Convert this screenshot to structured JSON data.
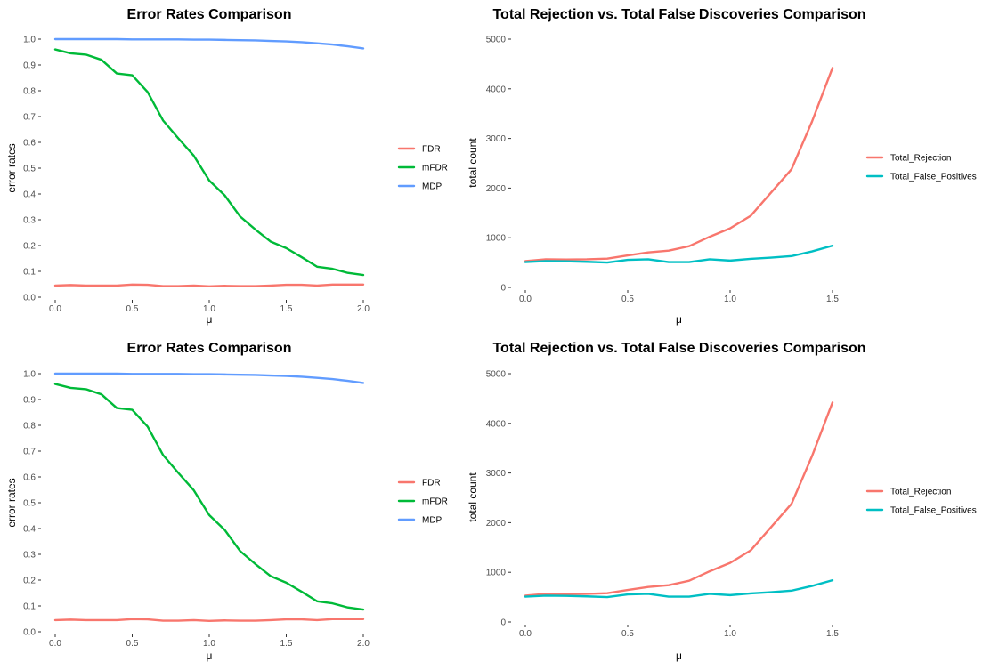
{
  "chart_data": [
    {
      "type": "line",
      "title": "Error Rates Comparison",
      "xlabel": "μ",
      "ylabel": "error rates",
      "xlim": [
        0,
        2.0
      ],
      "ylim": [
        0,
        1.0
      ],
      "x_ticks": [
        "0.0",
        "0.5",
        "1.0",
        "1.5",
        "2.0"
      ],
      "y_ticks": [
        "0.0",
        "0.1",
        "0.2",
        "0.3",
        "0.4",
        "0.5",
        "0.6",
        "0.7",
        "0.8",
        "0.9",
        "1.0"
      ],
      "grid": false,
      "legend_position": "right",
      "x": [
        0.0,
        0.1,
        0.2,
        0.3,
        0.4,
        0.5,
        0.6,
        0.7,
        0.8,
        0.9,
        1.0,
        1.1,
        1.2,
        1.3,
        1.4,
        1.5,
        1.6,
        1.7,
        1.8,
        1.9,
        2.0
      ],
      "series": [
        {
          "name": "FDR",
          "color": "#F8766D",
          "values": [
            0.045,
            0.047,
            0.045,
            0.045,
            0.045,
            0.049,
            0.048,
            0.043,
            0.043,
            0.045,
            0.042,
            0.044,
            0.043,
            0.043,
            0.045,
            0.048,
            0.048,
            0.045,
            0.049,
            0.049,
            0.049
          ]
        },
        {
          "name": "mFDR",
          "color": "#00BA38",
          "values": [
            0.96,
            0.945,
            0.94,
            0.92,
            0.867,
            0.86,
            0.795,
            0.685,
            0.615,
            0.548,
            0.452,
            0.395,
            0.313,
            0.262,
            0.215,
            0.19,
            0.155,
            0.118,
            0.11,
            0.094,
            0.086
          ]
        },
        {
          "name": "MDP",
          "color": "#619CFF",
          "values": [
            1.0,
            1.0,
            1.0,
            1.0,
            1.0,
            0.999,
            0.999,
            0.999,
            0.999,
            0.998,
            0.998,
            0.997,
            0.996,
            0.995,
            0.993,
            0.991,
            0.988,
            0.984,
            0.979,
            0.972,
            0.964
          ]
        }
      ]
    },
    {
      "type": "line",
      "title": "Total Rejection vs. Total False Discoveries Comparison",
      "xlabel": "μ",
      "ylabel": "total count",
      "xlim": [
        0,
        1.5
      ],
      "ylim": [
        0,
        5000
      ],
      "x_ticks": [
        "0.0",
        "0.5",
        "1.0",
        "1.5"
      ],
      "y_ticks": [
        "0",
        "1000",
        "2000",
        "3000",
        "4000",
        "5000"
      ],
      "grid": false,
      "legend_position": "right",
      "x": [
        0.0,
        0.1,
        0.2,
        0.3,
        0.4,
        0.5,
        0.6,
        0.7,
        0.8,
        0.9,
        1.0,
        1.1,
        1.2,
        1.3,
        1.4,
        1.5
      ],
      "series": [
        {
          "name": "Total_Rejection",
          "color": "#F8766D",
          "values": [
            530,
            565,
            560,
            565,
            580,
            645,
            705,
            740,
            830,
            1020,
            1190,
            1440,
            1910,
            2380,
            3340,
            4420
          ]
        },
        {
          "name": "Total_False_Positives",
          "color": "#00BFC4",
          "values": [
            510,
            530,
            525,
            515,
            500,
            555,
            565,
            510,
            510,
            565,
            540,
            575,
            600,
            630,
            725,
            840
          ]
        }
      ]
    },
    {
      "type": "line",
      "title": "Error Rates Comparison",
      "xlabel": "μ",
      "ylabel": "error rates",
      "xlim": [
        0,
        2.0
      ],
      "ylim": [
        0,
        1.0
      ],
      "x_ticks": [
        "0.0",
        "0.5",
        "1.0",
        "1.5",
        "2.0"
      ],
      "y_ticks": [
        "0.0",
        "0.1",
        "0.2",
        "0.3",
        "0.4",
        "0.5",
        "0.6",
        "0.7",
        "0.8",
        "0.9",
        "1.0"
      ],
      "grid": false,
      "legend_position": "right",
      "x": [
        0.0,
        0.1,
        0.2,
        0.3,
        0.4,
        0.5,
        0.6,
        0.7,
        0.8,
        0.9,
        1.0,
        1.1,
        1.2,
        1.3,
        1.4,
        1.5,
        1.6,
        1.7,
        1.8,
        1.9,
        2.0
      ],
      "series": [
        {
          "name": "FDR",
          "color": "#F8766D",
          "values": [
            0.045,
            0.047,
            0.045,
            0.045,
            0.045,
            0.049,
            0.048,
            0.043,
            0.043,
            0.045,
            0.042,
            0.044,
            0.043,
            0.043,
            0.045,
            0.048,
            0.048,
            0.045,
            0.049,
            0.049,
            0.049
          ]
        },
        {
          "name": "mFDR",
          "color": "#00BA38",
          "values": [
            0.96,
            0.945,
            0.94,
            0.92,
            0.867,
            0.86,
            0.795,
            0.685,
            0.615,
            0.548,
            0.452,
            0.395,
            0.313,
            0.262,
            0.215,
            0.19,
            0.155,
            0.118,
            0.11,
            0.094,
            0.086
          ]
        },
        {
          "name": "MDP",
          "color": "#619CFF",
          "values": [
            1.0,
            1.0,
            1.0,
            1.0,
            1.0,
            0.999,
            0.999,
            0.999,
            0.999,
            0.998,
            0.998,
            0.997,
            0.996,
            0.995,
            0.993,
            0.991,
            0.988,
            0.984,
            0.979,
            0.972,
            0.964
          ]
        }
      ]
    },
    {
      "type": "line",
      "title": "Total Rejection vs. Total False Discoveries Comparison",
      "xlabel": "μ",
      "ylabel": "total count",
      "xlim": [
        0,
        1.5
      ],
      "ylim": [
        0,
        5000
      ],
      "x_ticks": [
        "0.0",
        "0.5",
        "1.0",
        "1.5"
      ],
      "y_ticks": [
        "0",
        "1000",
        "2000",
        "3000",
        "4000",
        "5000"
      ],
      "grid": false,
      "legend_position": "right",
      "x": [
        0.0,
        0.1,
        0.2,
        0.3,
        0.4,
        0.5,
        0.6,
        0.7,
        0.8,
        0.9,
        1.0,
        1.1,
        1.2,
        1.3,
        1.4,
        1.5
      ],
      "series": [
        {
          "name": "Total_Rejection",
          "color": "#F8766D",
          "values": [
            530,
            565,
            560,
            565,
            580,
            645,
            705,
            740,
            830,
            1020,
            1190,
            1440,
            1910,
            2380,
            3340,
            4420
          ]
        },
        {
          "name": "Total_False_Positives",
          "color": "#00BFC4",
          "values": [
            510,
            530,
            525,
            515,
            500,
            555,
            565,
            510,
            510,
            565,
            540,
            575,
            600,
            630,
            725,
            840
          ]
        }
      ]
    }
  ]
}
